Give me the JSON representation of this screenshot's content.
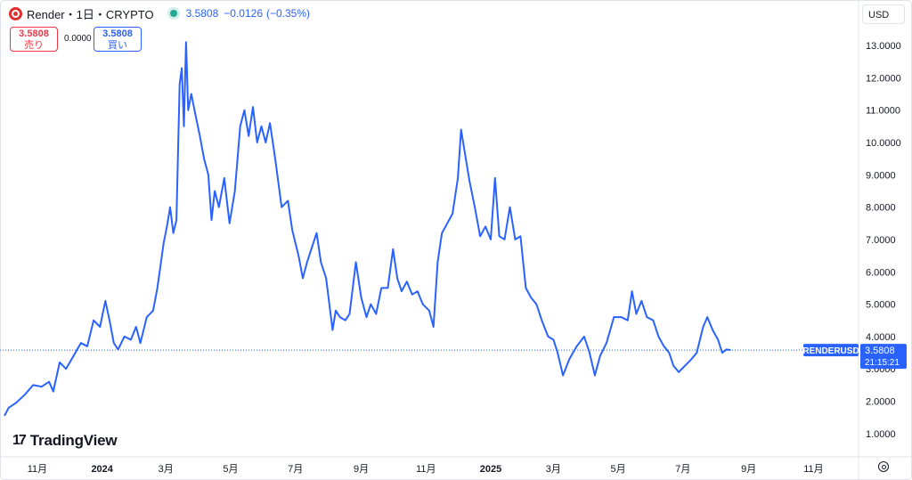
{
  "header": {
    "symbol": "Render・1日・CRYPTO",
    "price": "3.5808",
    "change": "−0.0126",
    "change_pct": "(−0.35%)"
  },
  "trade": {
    "sell_price": "3.5808",
    "sell_label": "売り",
    "spread": "0.0000",
    "buy_price": "3.5808",
    "buy_label": "買い"
  },
  "currency": "USD",
  "brand": "TradingView",
  "last_price_label": {
    "ticker": "RENDERUSD",
    "price": "3.5808",
    "countdown": "21:15:21"
  },
  "colors": {
    "line": "#2962ff",
    "label_bg": "#2962ff",
    "sell": "#f23645",
    "live": "#22ab94"
  },
  "chart_data": {
    "type": "line",
    "ylim": [
      0.5,
      13.8
    ],
    "xlim": [
      "2023-10-01",
      "2025-12-05"
    ],
    "y_ticks": [
      "1.0000",
      "2.0000",
      "3.0000",
      "4.0000",
      "5.0000",
      "6.0000",
      "7.0000",
      "8.0000",
      "9.0000",
      "10.0000",
      "11.0000",
      "12.0000",
      "13.0000"
    ],
    "x_ticks": [
      {
        "label": "11月",
        "date": "2023-11-01",
        "bold": false
      },
      {
        "label": "2024",
        "date": "2024-01-01",
        "bold": true
      },
      {
        "label": "3月",
        "date": "2024-03-01",
        "bold": false
      },
      {
        "label": "5月",
        "date": "2024-05-01",
        "bold": false
      },
      {
        "label": "7月",
        "date": "2024-07-01",
        "bold": false
      },
      {
        "label": "9月",
        "date": "2024-09-01",
        "bold": false
      },
      {
        "label": "11月",
        "date": "2024-11-01",
        "bold": false
      },
      {
        "label": "2025",
        "date": "2025-01-01",
        "bold": true
      },
      {
        "label": "3月",
        "date": "2025-03-01",
        "bold": false
      },
      {
        "label": "5月",
        "date": "2025-05-01",
        "bold": false
      },
      {
        "label": "7月",
        "date": "2025-07-01",
        "bold": false
      },
      {
        "label": "9月",
        "date": "2025-09-01",
        "bold": false
      },
      {
        "label": "11月",
        "date": "2025-11-01",
        "bold": false
      }
    ],
    "series": [
      {
        "points": [
          [
            "2023-10-01",
            1.55
          ],
          [
            "2023-10-05",
            1.8
          ],
          [
            "2023-10-12",
            1.95
          ],
          [
            "2023-10-20",
            2.2
          ],
          [
            "2023-10-28",
            2.5
          ],
          [
            "2023-11-05",
            2.45
          ],
          [
            "2023-11-12",
            2.6
          ],
          [
            "2023-11-16",
            2.3
          ],
          [
            "2023-11-22",
            3.2
          ],
          [
            "2023-11-28",
            3.0
          ],
          [
            "2023-12-05",
            3.4
          ],
          [
            "2023-12-12",
            3.8
          ],
          [
            "2023-12-18",
            3.7
          ],
          [
            "2023-12-24",
            4.5
          ],
          [
            "2023-12-30",
            4.3
          ],
          [
            "2024-01-04",
            5.1
          ],
          [
            "2024-01-08",
            4.5
          ],
          [
            "2024-01-12",
            3.8
          ],
          [
            "2024-01-16",
            3.6
          ],
          [
            "2024-01-22",
            4.0
          ],
          [
            "2024-01-28",
            3.9
          ],
          [
            "2024-02-02",
            4.3
          ],
          [
            "2024-02-06",
            3.8
          ],
          [
            "2024-02-12",
            4.6
          ],
          [
            "2024-02-18",
            4.8
          ],
          [
            "2024-02-22",
            5.5
          ],
          [
            "2024-02-28",
            6.9
          ],
          [
            "2024-03-02",
            7.4
          ],
          [
            "2024-03-05",
            8.0
          ],
          [
            "2024-03-08",
            7.2
          ],
          [
            "2024-03-11",
            7.6
          ],
          [
            "2024-03-14",
            11.8
          ],
          [
            "2024-03-16",
            12.3
          ],
          [
            "2024-03-18",
            10.5
          ],
          [
            "2024-03-20",
            13.1
          ],
          [
            "2024-03-22",
            11.0
          ],
          [
            "2024-03-25",
            11.5
          ],
          [
            "2024-03-28",
            11.0
          ],
          [
            "2024-04-02",
            10.2
          ],
          [
            "2024-04-06",
            9.5
          ],
          [
            "2024-04-10",
            9.0
          ],
          [
            "2024-04-13",
            7.6
          ],
          [
            "2024-04-16",
            8.5
          ],
          [
            "2024-04-20",
            8.0
          ],
          [
            "2024-04-25",
            8.9
          ],
          [
            "2024-04-30",
            7.5
          ],
          [
            "2024-05-05",
            8.5
          ],
          [
            "2024-05-10",
            10.5
          ],
          [
            "2024-05-14",
            11.0
          ],
          [
            "2024-05-18",
            10.2
          ],
          [
            "2024-05-22",
            11.1
          ],
          [
            "2024-05-26",
            10.0
          ],
          [
            "2024-05-30",
            10.5
          ],
          [
            "2024-06-03",
            10.0
          ],
          [
            "2024-06-07",
            10.6
          ],
          [
            "2024-06-12",
            9.5
          ],
          [
            "2024-06-18",
            8.0
          ],
          [
            "2024-06-24",
            8.2
          ],
          [
            "2024-06-28",
            7.3
          ],
          [
            "2024-07-04",
            6.5
          ],
          [
            "2024-07-08",
            5.8
          ],
          [
            "2024-07-12",
            6.3
          ],
          [
            "2024-07-17",
            6.8
          ],
          [
            "2024-07-21",
            7.2
          ],
          [
            "2024-07-25",
            6.3
          ],
          [
            "2024-07-30",
            5.8
          ],
          [
            "2024-08-05",
            4.2
          ],
          [
            "2024-08-08",
            4.8
          ],
          [
            "2024-08-12",
            4.6
          ],
          [
            "2024-08-17",
            4.5
          ],
          [
            "2024-08-21",
            4.7
          ],
          [
            "2024-08-27",
            6.3
          ],
          [
            "2024-09-01",
            5.2
          ],
          [
            "2024-09-06",
            4.6
          ],
          [
            "2024-09-10",
            5.0
          ],
          [
            "2024-09-15",
            4.7
          ],
          [
            "2024-09-20",
            5.5
          ],
          [
            "2024-09-26",
            5.5
          ],
          [
            "2024-10-01",
            6.7
          ],
          [
            "2024-10-05",
            5.8
          ],
          [
            "2024-10-09",
            5.4
          ],
          [
            "2024-10-14",
            5.7
          ],
          [
            "2024-10-19",
            5.3
          ],
          [
            "2024-10-24",
            5.4
          ],
          [
            "2024-10-29",
            5.0
          ],
          [
            "2024-11-04",
            4.8
          ],
          [
            "2024-11-08",
            4.3
          ],
          [
            "2024-11-12",
            6.3
          ],
          [
            "2024-11-16",
            7.2
          ],
          [
            "2024-11-21",
            7.5
          ],
          [
            "2024-11-26",
            7.8
          ],
          [
            "2024-12-01",
            8.9
          ],
          [
            "2024-12-04",
            10.4
          ],
          [
            "2024-12-08",
            9.6
          ],
          [
            "2024-12-12",
            8.8
          ],
          [
            "2024-12-17",
            8.0
          ],
          [
            "2024-12-22",
            7.1
          ],
          [
            "2024-12-27",
            7.4
          ],
          [
            "2025-01-01",
            7.0
          ],
          [
            "2025-01-05",
            8.9
          ],
          [
            "2025-01-09",
            7.1
          ],
          [
            "2025-01-14",
            7.0
          ],
          [
            "2025-01-19",
            8.0
          ],
          [
            "2025-01-24",
            7.0
          ],
          [
            "2025-01-29",
            7.1
          ],
          [
            "2025-02-03",
            5.5
          ],
          [
            "2025-02-08",
            5.2
          ],
          [
            "2025-02-13",
            5.0
          ],
          [
            "2025-02-18",
            4.5
          ],
          [
            "2025-02-24",
            4.0
          ],
          [
            "2025-03-01",
            3.9
          ],
          [
            "2025-03-05",
            3.5
          ],
          [
            "2025-03-10",
            2.8
          ],
          [
            "2025-03-16",
            3.3
          ],
          [
            "2025-03-23",
            3.7
          ],
          [
            "2025-03-30",
            4.0
          ],
          [
            "2025-04-04",
            3.5
          ],
          [
            "2025-04-09",
            2.8
          ],
          [
            "2025-04-14",
            3.4
          ],
          [
            "2025-04-20",
            3.8
          ],
          [
            "2025-04-27",
            4.6
          ],
          [
            "2025-05-04",
            4.6
          ],
          [
            "2025-05-10",
            4.5
          ],
          [
            "2025-05-14",
            5.4
          ],
          [
            "2025-05-18",
            4.7
          ],
          [
            "2025-05-23",
            5.1
          ],
          [
            "2025-05-28",
            4.6
          ],
          [
            "2025-06-03",
            4.5
          ],
          [
            "2025-06-08",
            4.0
          ],
          [
            "2025-06-13",
            3.7
          ],
          [
            "2025-06-18",
            3.5
          ],
          [
            "2025-06-22",
            3.1
          ],
          [
            "2025-06-27",
            2.9
          ],
          [
            "2025-07-03",
            3.1
          ],
          [
            "2025-07-09",
            3.3
          ],
          [
            "2025-07-14",
            3.5
          ],
          [
            "2025-07-20",
            4.3
          ],
          [
            "2025-07-24",
            4.6
          ],
          [
            "2025-07-29",
            4.2
          ],
          [
            "2025-08-03",
            3.9
          ],
          [
            "2025-08-07",
            3.5
          ],
          [
            "2025-08-11",
            3.6
          ],
          [
            "2025-08-15",
            3.58
          ]
        ]
      }
    ],
    "last_value": 3.5808
  }
}
